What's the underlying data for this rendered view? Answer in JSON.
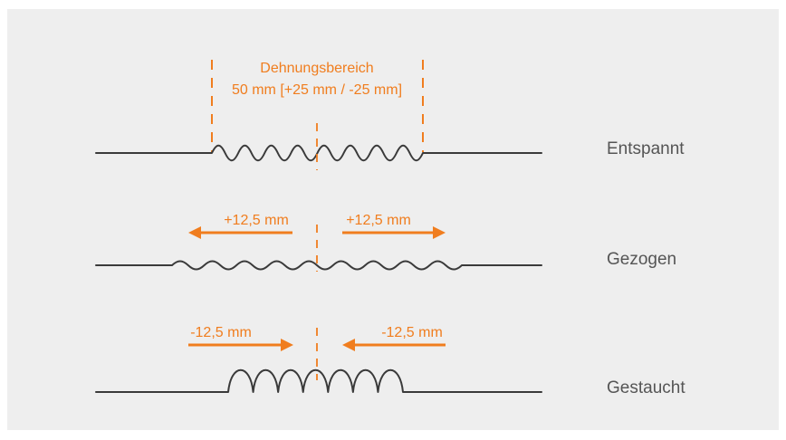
{
  "diagram": {
    "range_title": "Dehnungsbereich",
    "range_value": "50 mm [+25 mm / -25 mm]",
    "rows": [
      {
        "label": "Entspannt"
      },
      {
        "label": "Gezogen",
        "left_arrow_label": "+12,5 mm",
        "right_arrow_label": "+12,5 mm"
      },
      {
        "label": "Gestaucht",
        "left_arrow_label": "-12,5 mm",
        "right_arrow_label": "-12,5 mm"
      }
    ],
    "colors": {
      "accent": "#f07d1e",
      "line": "#3a3a3a",
      "label": "#555555",
      "panel": "#eeeeee"
    }
  }
}
